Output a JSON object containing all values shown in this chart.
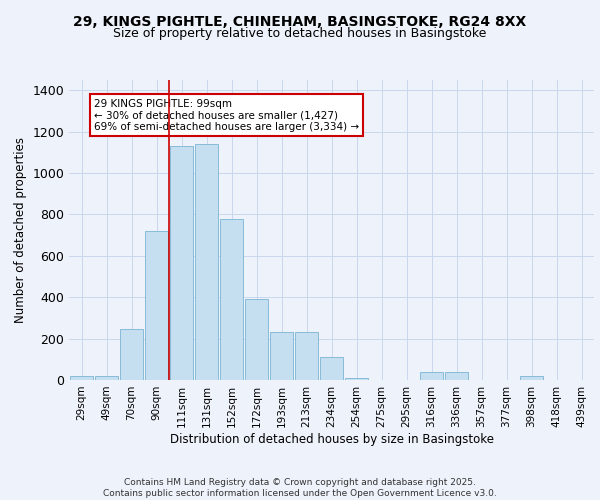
{
  "title_line1": "29, KINGS PIGHTLE, CHINEHAM, BASINGSTOKE, RG24 8XX",
  "title_line2": "Size of property relative to detached houses in Basingstoke",
  "xlabel": "Distribution of detached houses by size in Basingstoke",
  "ylabel": "Number of detached properties",
  "bin_labels": [
    "29sqm",
    "49sqm",
    "70sqm",
    "90sqm",
    "111sqm",
    "131sqm",
    "152sqm",
    "172sqm",
    "193sqm",
    "213sqm",
    "234sqm",
    "254sqm",
    "275sqm",
    "295sqm",
    "316sqm",
    "336sqm",
    "357sqm",
    "377sqm",
    "398sqm",
    "418sqm",
    "439sqm"
  ],
  "bar_values": [
    20,
    20,
    245,
    720,
    1130,
    1140,
    780,
    390,
    230,
    230,
    110,
    10,
    0,
    0,
    40,
    40,
    0,
    0,
    20,
    0,
    0
  ],
  "bar_color": "#c5dff0",
  "bar_edge_color": "#7ab4d4",
  "background_color": "#eef2fa",
  "grid_color": "#c8d8ec",
  "vline_x": 4.0,
  "vline_color": "#cc0000",
  "annotation_text": "29 KINGS PIGHTLE: 99sqm\n← 30% of detached houses are smaller (1,427)\n69% of semi-detached houses are larger (3,334) →",
  "annotation_box_color": "#ffffff",
  "annotation_box_edge": "#cc0000",
  "ylim": [
    0,
    1450
  ],
  "yticks": [
    0,
    200,
    400,
    600,
    800,
    1000,
    1200,
    1400
  ],
  "footer_line1": "Contains HM Land Registry data © Crown copyright and database right 2025.",
  "footer_line2": "Contains public sector information licensed under the Open Government Licence v3.0.",
  "title_fontsize": 10,
  "subtitle_fontsize": 9,
  "tick_fontsize": 7.5,
  "ylabel_fontsize": 8.5,
  "xlabel_fontsize": 8.5,
  "footer_fontsize": 6.5
}
